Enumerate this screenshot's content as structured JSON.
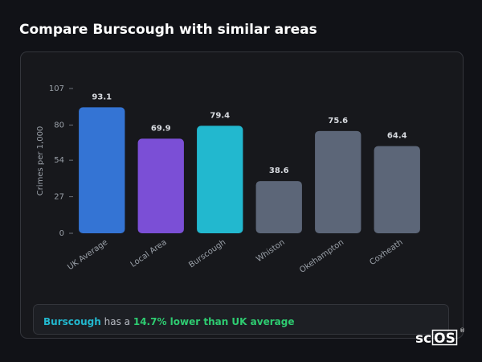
{
  "chart_data": {
    "type": "bar",
    "title": "Compare Burscough with similar areas",
    "y_label": "Crimes per 1,000",
    "categories": [
      "UK Average",
      "Local Area",
      "Burscough",
      "Whiston",
      "Okehampton",
      "Coxheath"
    ],
    "values": [
      93.1,
      69.9,
      79.4,
      38.6,
      75.6,
      64.4
    ],
    "colors": [
      "#3474d4",
      "#7b4fd6",
      "#22b8cf",
      "#5c6678",
      "#5c6678",
      "#5c6678"
    ],
    "ylim": [
      0,
      107
    ],
    "yticks": [
      0,
      27,
      54,
      80,
      107
    ],
    "grid": false
  },
  "summary": {
    "area": "Burscough",
    "middle": "has a",
    "highlight": "14.7% lower than UK average"
  },
  "logo": {
    "prefix": "sc",
    "boxed": "OS",
    "mark": "®"
  }
}
